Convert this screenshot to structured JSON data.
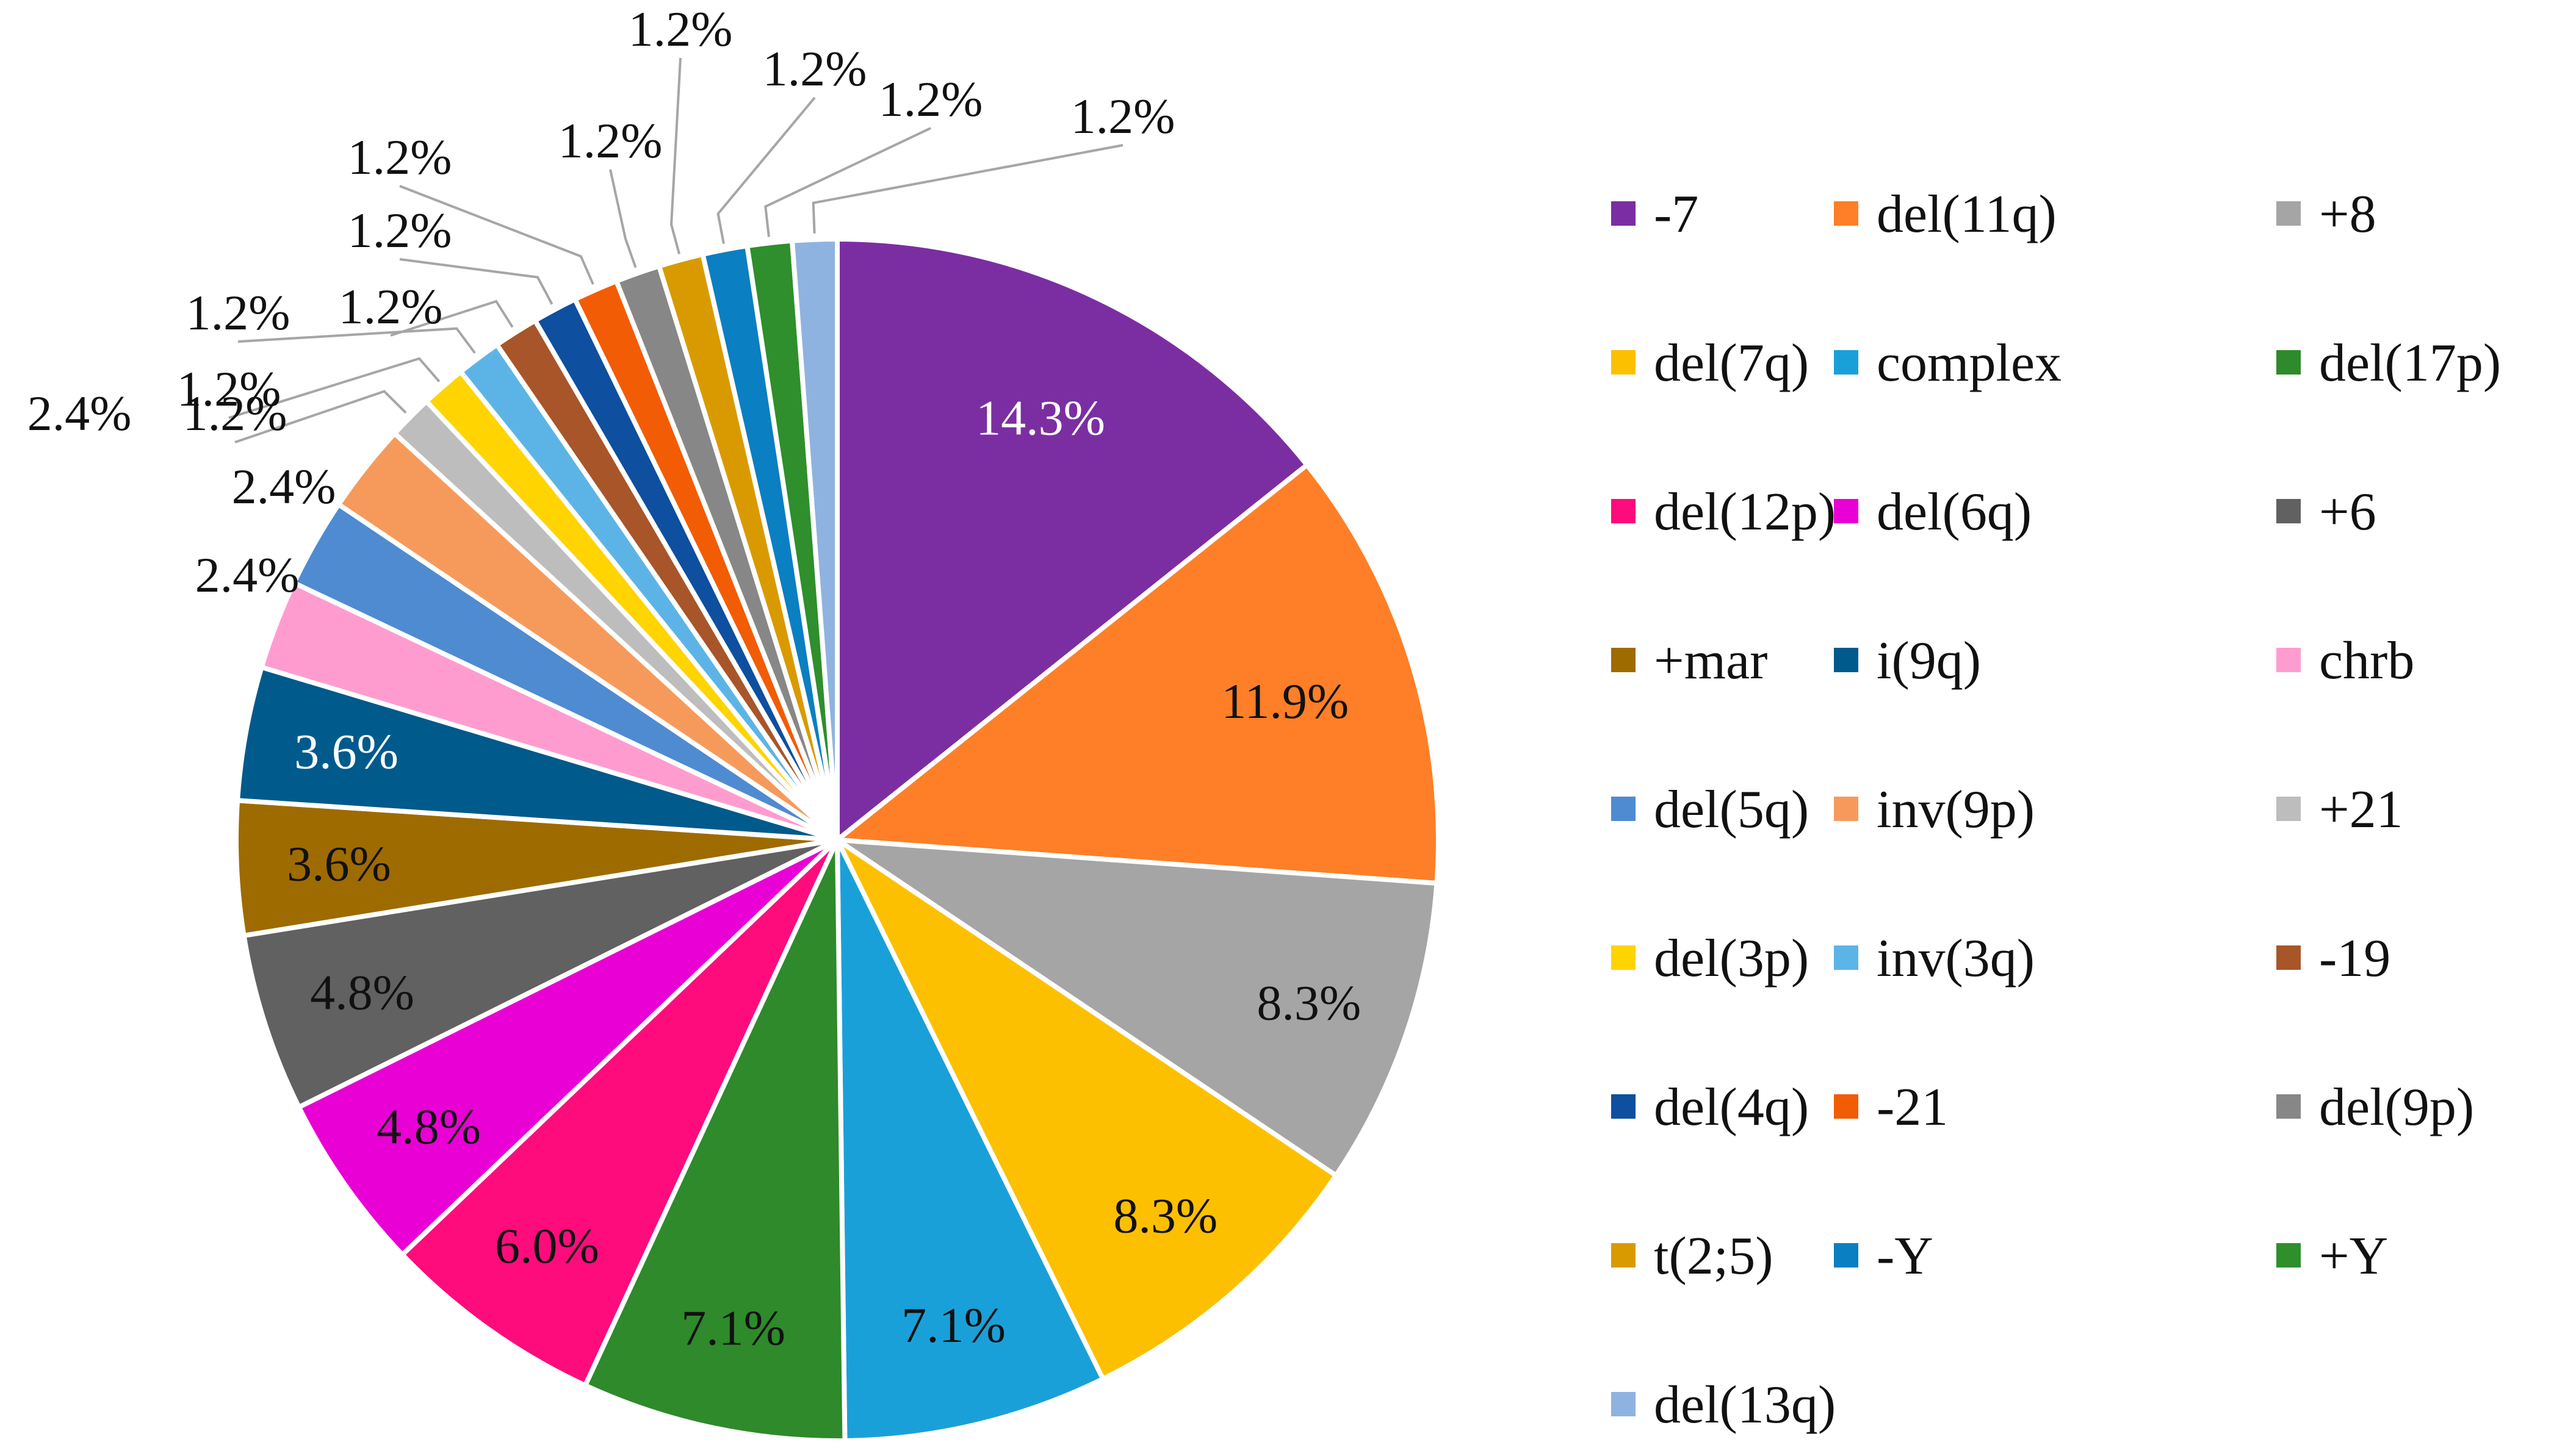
{
  "chart_data": {
    "type": "pie",
    "title": "",
    "legend_position": "right",
    "slices": [
      {
        "label": "-7",
        "value": 14.3,
        "display": "14.3%",
        "color": "#7b2ea1",
        "text_color": "#ffffff"
      },
      {
        "label": "del(11q)",
        "value": 11.9,
        "display": "11.9%",
        "color": "#fe7f27",
        "text_color": "#111111"
      },
      {
        "label": "+8",
        "value": 8.3,
        "display": "8.3%",
        "color": "#a5a5a5",
        "text_color": "#111111"
      },
      {
        "label": "del(7q)",
        "value": 8.3,
        "display": "8.3%",
        "color": "#fdc000",
        "text_color": "#111111"
      },
      {
        "label": "complex",
        "value": 7.1,
        "display": "7.1%",
        "color": "#1aa0d8",
        "text_color": "#111111"
      },
      {
        "label": "del(17p)",
        "value": 7.1,
        "display": "7.1%",
        "color": "#2e8a2a",
        "text_color": "#111111"
      },
      {
        "label": "del(12p)",
        "value": 6.0,
        "display": "6.0%",
        "color": "#fe0c7c",
        "text_color": "#111111"
      },
      {
        "label": "del(6q)",
        "value": 4.8,
        "display": "4.8%",
        "color": "#e800d4",
        "text_color": "#111111"
      },
      {
        "label": "+6",
        "value": 4.8,
        "display": "4.8%",
        "color": "#616161",
        "text_color": "#111111"
      },
      {
        "label": "+mar",
        "value": 3.6,
        "display": "3.6%",
        "color": "#9e6b00",
        "text_color": "#111111"
      },
      {
        "label": "i(9q)",
        "value": 3.6,
        "display": "3.6%",
        "color": "#005a8c",
        "text_color": "#ffffff"
      },
      {
        "label": "chrb",
        "value": 2.4,
        "display": "2.4%",
        "color": "#ff9ccf",
        "text_color": "#111111"
      },
      {
        "label": "del(5q)",
        "value": 2.4,
        "display": "2.4%",
        "color": "#4f8bd1",
        "text_color": "#111111"
      },
      {
        "label": "inv(9p)",
        "value": 2.4,
        "display": "2.4%",
        "color": "#f69a5c",
        "text_color": "#111111"
      },
      {
        "label": "+21",
        "value": 1.2,
        "display": "1.2%",
        "color": "#bdbdbd",
        "text_color": "#111111"
      },
      {
        "label": "del(3p)",
        "value": 1.2,
        "display": "1.2%",
        "color": "#ffd400",
        "text_color": "#111111"
      },
      {
        "label": "inv(3q)",
        "value": 1.2,
        "display": "1.2%",
        "color": "#5cb4e6",
        "text_color": "#111111"
      },
      {
        "label": "-19",
        "value": 1.2,
        "display": "1.2%",
        "color": "#a8552a",
        "text_color": "#111111"
      },
      {
        "label": "del(4q)",
        "value": 1.2,
        "display": "1.2%",
        "color": "#0e4f9f",
        "text_color": "#111111"
      },
      {
        "label": "-21",
        "value": 1.2,
        "display": "1.2%",
        "color": "#f25c05",
        "text_color": "#111111"
      },
      {
        "label": "del(9p)",
        "value": 1.2,
        "display": "1.2%",
        "color": "#878787",
        "text_color": "#111111"
      },
      {
        "label": "t(2;5)",
        "value": 1.2,
        "display": "1.2%",
        "color": "#d99a00",
        "text_color": "#111111"
      },
      {
        "label": "-Y",
        "value": 1.2,
        "display": "1.2%",
        "color": "#0a7fc2",
        "text_color": "#111111"
      },
      {
        "label": "+Y",
        "value": 1.2,
        "display": "1.2%",
        "color": "#2e8f2c",
        "text_color": "#111111"
      },
      {
        "label": "del(13q)",
        "value": 1.2,
        "display": "1.2%",
        "color": "#8fb3e0",
        "text_color": "#111111"
      }
    ]
  }
}
